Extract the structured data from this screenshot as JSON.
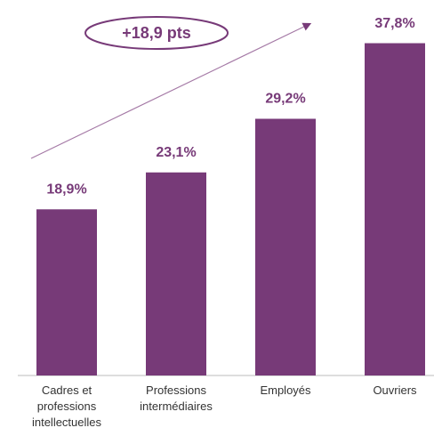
{
  "chart_data": {
    "type": "bar",
    "categories": [
      "Cadres et professions intellectuelles",
      "Professions intermédiaires",
      "Employés",
      "Ouvriers"
    ],
    "values": [
      18.9,
      23.1,
      29.2,
      37.8
    ],
    "value_labels": [
      "18,9%",
      "23,1%",
      "29,2%",
      "37,8%"
    ],
    "color": "#773a78",
    "annotation": "+18,9 pts"
  }
}
